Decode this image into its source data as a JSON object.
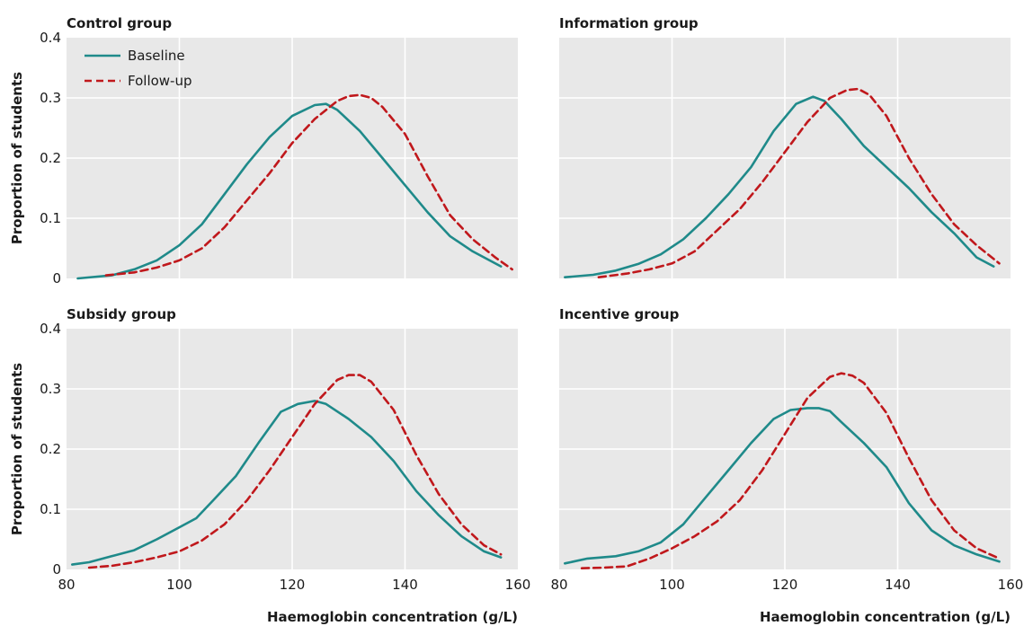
{
  "y_axis_label": "Proportion of students",
  "x_axis_label": "Haemoglobin concentration (g/L)",
  "colors": {
    "baseline": "#1f8a8a",
    "followup": "#c0181c",
    "plot_bg": "#e8e8e8"
  },
  "chart_data": [
    {
      "type": "line",
      "title": "Control group",
      "xlim": [
        80,
        160
      ],
      "ylim": [
        0,
        0.4
      ],
      "x_ticks": [
        80,
        100,
        120,
        140,
        160
      ],
      "y_ticks": [
        0,
        0.1,
        0.2,
        0.3,
        0.4
      ],
      "grid": true,
      "legend": "top-left",
      "series": [
        {
          "name": "Baseline",
          "style": "solid",
          "x": [
            82,
            88,
            92,
            96,
            100,
            104,
            108,
            112,
            116,
            120,
            124,
            126,
            128,
            132,
            136,
            140,
            144,
            148,
            152,
            157
          ],
          "y": [
            0.0,
            0.005,
            0.015,
            0.03,
            0.055,
            0.09,
            0.14,
            0.19,
            0.235,
            0.27,
            0.288,
            0.29,
            0.28,
            0.245,
            0.2,
            0.155,
            0.11,
            0.07,
            0.045,
            0.02
          ]
        },
        {
          "name": "Follow-up",
          "style": "dashed",
          "x": [
            87,
            92,
            96,
            100,
            104,
            108,
            112,
            116,
            120,
            124,
            128,
            130,
            132,
            134,
            136,
            140,
            144,
            148,
            152,
            156,
            159
          ],
          "y": [
            0.005,
            0.01,
            0.018,
            0.03,
            0.05,
            0.085,
            0.13,
            0.175,
            0.225,
            0.265,
            0.295,
            0.303,
            0.305,
            0.3,
            0.285,
            0.24,
            0.17,
            0.105,
            0.065,
            0.035,
            0.015
          ]
        }
      ]
    },
    {
      "type": "line",
      "title": "Information group",
      "xlim": [
        80,
        160
      ],
      "ylim": [
        0,
        0.4
      ],
      "x_ticks": [
        80,
        100,
        120,
        140,
        160
      ],
      "y_ticks": [
        0,
        0.1,
        0.2,
        0.3,
        0.4
      ],
      "grid": true,
      "series": [
        {
          "name": "Baseline",
          "style": "solid",
          "x": [
            81,
            86,
            90,
            94,
            98,
            102,
            106,
            110,
            114,
            118,
            122,
            125,
            127,
            130,
            134,
            138,
            142,
            146,
            150,
            154,
            157
          ],
          "y": [
            0.002,
            0.006,
            0.013,
            0.024,
            0.04,
            0.065,
            0.1,
            0.14,
            0.185,
            0.245,
            0.29,
            0.302,
            0.295,
            0.265,
            0.22,
            0.185,
            0.15,
            0.11,
            0.075,
            0.035,
            0.02
          ]
        },
        {
          "name": "Follow-up",
          "style": "dashed",
          "x": [
            87,
            92,
            96,
            100,
            104,
            108,
            112,
            116,
            120,
            124,
            128,
            131,
            133,
            135,
            138,
            142,
            146,
            150,
            154,
            158
          ],
          "y": [
            0.002,
            0.008,
            0.015,
            0.025,
            0.045,
            0.08,
            0.115,
            0.16,
            0.21,
            0.26,
            0.3,
            0.313,
            0.315,
            0.305,
            0.27,
            0.2,
            0.14,
            0.09,
            0.055,
            0.025
          ]
        }
      ]
    },
    {
      "type": "line",
      "title": "Subsidy group",
      "xlim": [
        80,
        160
      ],
      "ylim": [
        0,
        0.4
      ],
      "x_ticks": [
        80,
        100,
        120,
        140,
        160
      ],
      "y_ticks": [
        0,
        0.1,
        0.2,
        0.3,
        0.4
      ],
      "grid": true,
      "series": [
        {
          "name": "Baseline",
          "style": "solid",
          "x": [
            81,
            84,
            88,
            92,
            96,
            100,
            103,
            106,
            110,
            114,
            118,
            121,
            124,
            126,
            130,
            134,
            138,
            142,
            146,
            150,
            154,
            157
          ],
          "y": [
            0.008,
            0.012,
            0.022,
            0.032,
            0.05,
            0.07,
            0.085,
            0.115,
            0.155,
            0.21,
            0.262,
            0.275,
            0.28,
            0.275,
            0.25,
            0.22,
            0.18,
            0.13,
            0.09,
            0.055,
            0.03,
            0.02
          ]
        },
        {
          "name": "Follow-up",
          "style": "dashed",
          "x": [
            84,
            88,
            92,
            96,
            100,
            104,
            108,
            112,
            116,
            120,
            124,
            128,
            130,
            132,
            134,
            138,
            142,
            146,
            150,
            154,
            157
          ],
          "y": [
            0.003,
            0.006,
            0.012,
            0.02,
            0.03,
            0.048,
            0.075,
            0.115,
            0.165,
            0.22,
            0.275,
            0.315,
            0.323,
            0.323,
            0.312,
            0.265,
            0.19,
            0.125,
            0.075,
            0.04,
            0.025
          ]
        }
      ]
    },
    {
      "type": "line",
      "title": "Incentive group",
      "xlim": [
        80,
        160
      ],
      "ylim": [
        0,
        0.4
      ],
      "x_ticks": [
        80,
        100,
        120,
        140,
        160
      ],
      "y_ticks": [
        0,
        0.1,
        0.2,
        0.3,
        0.4
      ],
      "grid": true,
      "series": [
        {
          "name": "Baseline",
          "style": "solid",
          "x": [
            81,
            85,
            90,
            94,
            98,
            102,
            106,
            110,
            114,
            118,
            121,
            124,
            126,
            128,
            130,
            134,
            138,
            142,
            146,
            150,
            154,
            158
          ],
          "y": [
            0.01,
            0.018,
            0.022,
            0.03,
            0.045,
            0.075,
            0.12,
            0.165,
            0.21,
            0.25,
            0.265,
            0.268,
            0.268,
            0.263,
            0.245,
            0.21,
            0.17,
            0.11,
            0.065,
            0.04,
            0.025,
            0.013
          ]
        },
        {
          "name": "Follow-up",
          "style": "dashed",
          "x": [
            84,
            88,
            92,
            96,
            100,
            104,
            108,
            112,
            116,
            120,
            124,
            128,
            130,
            132,
            134,
            138,
            142,
            146,
            150,
            154,
            158
          ],
          "y": [
            0.002,
            0.003,
            0.005,
            0.018,
            0.035,
            0.055,
            0.08,
            0.115,
            0.165,
            0.225,
            0.285,
            0.32,
            0.326,
            0.322,
            0.31,
            0.26,
            0.185,
            0.115,
            0.065,
            0.035,
            0.018
          ]
        }
      ]
    }
  ]
}
